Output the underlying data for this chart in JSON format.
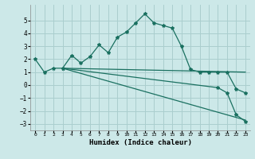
{
  "xlabel": "Humidex (Indice chaleur)",
  "ylabel": "",
  "xlim": [
    -0.5,
    23.5
  ],
  "ylim": [
    -3.5,
    6.2
  ],
  "yticks": [
    -3,
    -2,
    -1,
    0,
    1,
    2,
    3,
    4,
    5
  ],
  "xticks": [
    0,
    1,
    2,
    3,
    4,
    5,
    6,
    7,
    8,
    9,
    10,
    11,
    12,
    13,
    14,
    15,
    16,
    17,
    18,
    19,
    20,
    21,
    22,
    23
  ],
  "background_color": "#cce8e8",
  "grid_color": "#aacece",
  "line_color": "#1a7060",
  "line1_x": [
    0,
    1,
    2,
    3,
    4,
    5,
    6,
    7,
    8,
    9,
    10,
    11,
    12,
    13,
    14,
    15,
    16,
    17,
    18,
    19,
    20,
    21,
    22,
    23
  ],
  "line1_y": [
    2.0,
    1.0,
    1.3,
    1.3,
    2.3,
    1.7,
    2.2,
    3.1,
    2.5,
    3.7,
    4.1,
    4.8,
    5.5,
    4.8,
    4.6,
    4.4,
    3.0,
    1.2,
    1.0,
    1.0,
    1.0,
    1.0,
    -0.3,
    -0.6
  ],
  "line2_x": [
    3,
    23
  ],
  "line2_y": [
    1.3,
    1.0
  ],
  "line3_x": [
    3,
    23
  ],
  "line3_y": [
    1.3,
    -2.7
  ],
  "line4_x": [
    3,
    20,
    21,
    22,
    23
  ],
  "line4_y": [
    1.3,
    -0.2,
    -0.6,
    -2.3,
    -2.8
  ]
}
